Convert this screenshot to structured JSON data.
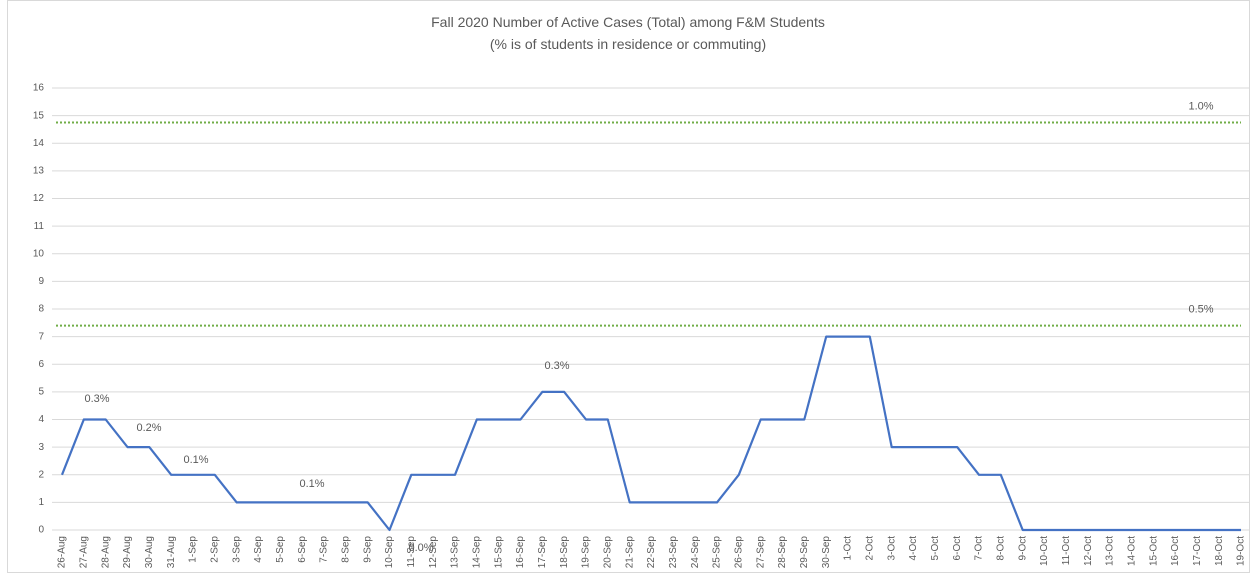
{
  "chart_data": {
    "type": "line",
    "title": "Fall 2020 Number of Active Cases (Total) among F&M Students",
    "subtitle": "(% is of students in residence or commuting)",
    "categories": [
      "26-Aug",
      "27-Aug",
      "28-Aug",
      "29-Aug",
      "30-Aug",
      "31-Aug",
      "1-Sep",
      "2-Sep",
      "3-Sep",
      "4-Sep",
      "5-Sep",
      "6-Sep",
      "7-Sep",
      "8-Sep",
      "9-Sep",
      "10-Sep",
      "11-Sep",
      "12-Sep",
      "13-Sep",
      "14-Sep",
      "15-Sep",
      "16-Sep",
      "17-Sep",
      "18-Sep",
      "19-Sep",
      "20-Sep",
      "21-Sep",
      "22-Sep",
      "23-Sep",
      "24-Sep",
      "25-Sep",
      "26-Sep",
      "27-Sep",
      "28-Sep",
      "29-Sep",
      "30-Sep",
      "1-Oct",
      "2-Oct",
      "3-Oct",
      "4-Oct",
      "5-Oct",
      "6-Oct",
      "7-Oct",
      "8-Oct",
      "9-Oct",
      "10-Oct",
      "11-Oct",
      "12-Oct",
      "13-Oct",
      "14-Oct",
      "15-Oct",
      "16-Oct",
      "17-Oct",
      "18-Oct",
      "19-Oct"
    ],
    "series": [
      {
        "name": "Active Cases",
        "color": "#4472c4",
        "values": [
          2,
          4,
          4,
          3,
          3,
          2,
          2,
          2,
          1,
          1,
          1,
          1,
          1,
          1,
          1,
          0,
          2,
          2,
          2,
          4,
          4,
          4,
          5,
          5,
          4,
          4,
          1,
          1,
          1,
          1,
          1,
          2,
          4,
          4,
          4,
          7,
          7,
          7,
          3,
          3,
          3,
          3,
          2,
          2,
          0,
          0,
          0,
          0,
          0,
          0,
          0,
          0,
          0,
          0,
          0
        ]
      }
    ],
    "reference_lines": [
      {
        "value": 14.75,
        "label": "1.0%",
        "color": "#70ad47"
      },
      {
        "value": 7.4,
        "label": "0.5%",
        "color": "#70ad47"
      }
    ],
    "annotations": [
      "0.3%",
      "0.2%",
      "0.1%",
      "0.1%",
      "0.0%",
      "0.3%"
    ],
    "ylim": [
      0,
      16
    ],
    "yticks": [
      0,
      1,
      2,
      3,
      4,
      5,
      6,
      7,
      8,
      9,
      10,
      11,
      12,
      13,
      14,
      15,
      16
    ],
    "grid": true
  }
}
